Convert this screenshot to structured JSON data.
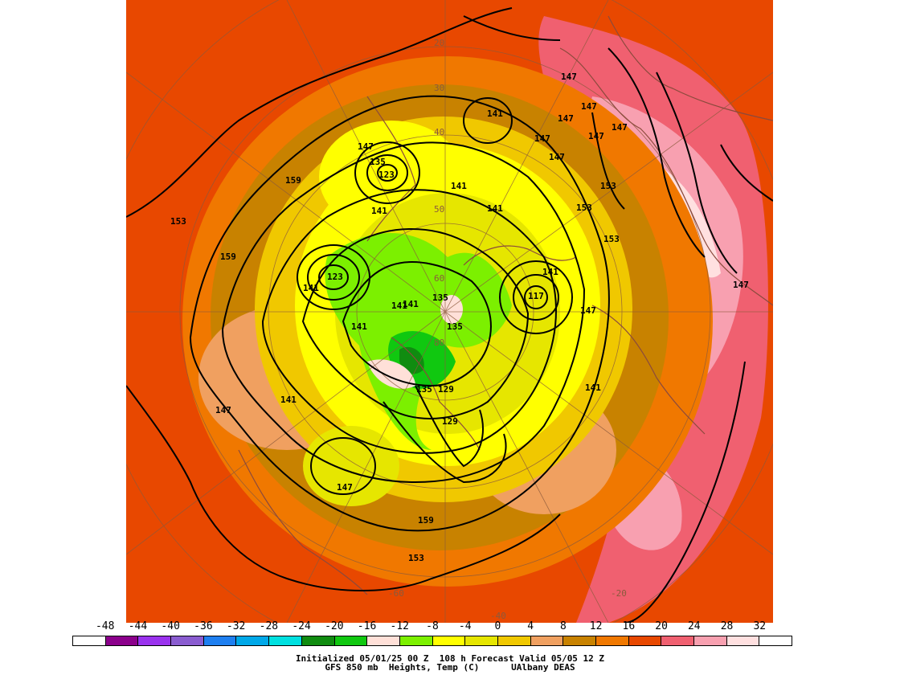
{
  "colorbar": {
    "labels": [
      "-48",
      "-44",
      "-40",
      "-36",
      "-32",
      "-28",
      "-24",
      "-20",
      "-16",
      "-12",
      "-8",
      "-4",
      "0",
      "4",
      "8",
      "12",
      "16",
      "20",
      "24",
      "28",
      "32"
    ],
    "colors": [
      "#ffffff",
      "#8b008b",
      "#9a32ee",
      "#8a5cd0",
      "#1e7ff0",
      "#00a8e8",
      "#00e0e0",
      "#108c10",
      "#10c810",
      "#ffe0d8",
      "#7cf000",
      "#ffff00",
      "#e6e600",
      "#f0c800",
      "#f0a060",
      "#c88200",
      "#f07800",
      "#e84800",
      "#f06070",
      "#f8a0b0",
      "#ffe0e0",
      "#ffffff"
    ]
  },
  "caption": {
    "line1": "Initialized 05/01/25 00 Z  108 h Forecast Valid 05/05 12 Z",
    "line2": "GFS 850 mb  Heights, Temp (C)      UAlbany DEAS"
  },
  "lat_labels": [
    "20",
    "30",
    "40",
    "50",
    "60",
    "80",
    "-60",
    "-40",
    "-20"
  ],
  "height_labels": [
    "147",
    "147",
    "147",
    "147",
    "147",
    "147",
    "147",
    "153",
    "153",
    "153",
    "141",
    "141",
    "141",
    "141",
    "135",
    "123",
    "159",
    "153",
    "159",
    "147",
    "141",
    "141",
    "135",
    "135",
    "129",
    "129",
    "141",
    "147",
    "147",
    "141",
    "147",
    "159",
    "153",
    "147",
    "141",
    "141",
    "117",
    "123",
    "141",
    "135"
  ],
  "chart_data": {
    "type": "heatmap",
    "title": "GFS 850 mb  Heights, Temp (C)",
    "temperature_levels_c": [
      -48,
      -44,
      -40,
      -36,
      -32,
      -28,
      -24,
      -20,
      -16,
      -12,
      -8,
      -4,
      0,
      4,
      8,
      12,
      16,
      20,
      24,
      28,
      32
    ],
    "height_contour_labels_dam": [
      117,
      123,
      129,
      135,
      141,
      147,
      153,
      159
    ]
  }
}
